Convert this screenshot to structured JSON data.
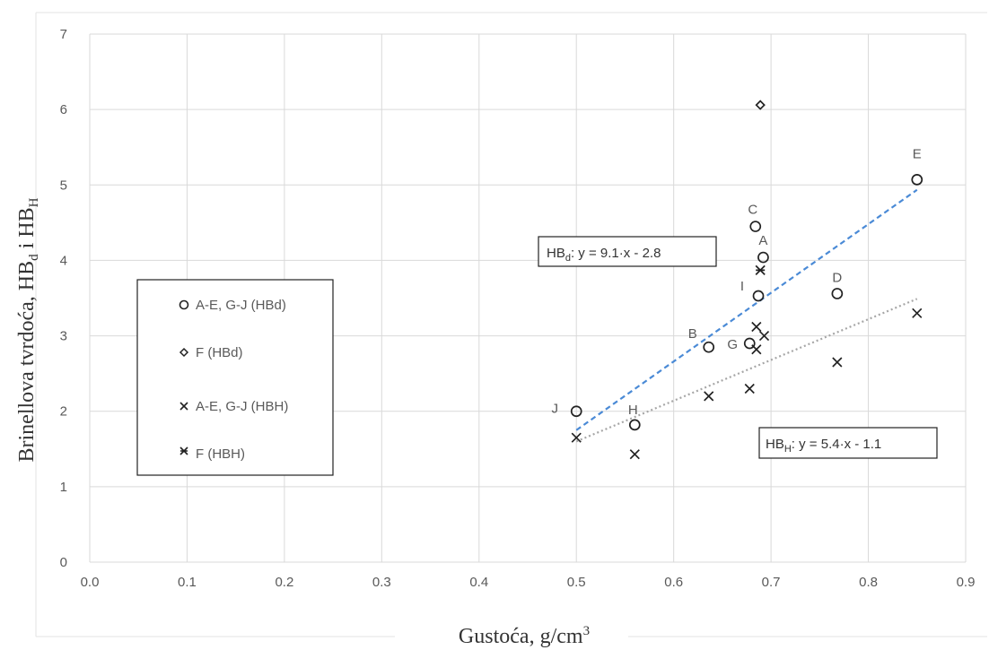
{
  "chart_data": {
    "type": "scatter",
    "xlabel": "Gustoća, g/cm³",
    "ylabel": "Brinellova tvrdoća, HBd i HBH",
    "xlim": [
      0,
      0.9
    ],
    "ylim": [
      0,
      7
    ],
    "x_ticks": [
      "0.0",
      "0.1",
      "0.2",
      "0.3",
      "0.4",
      "0.5",
      "0.6",
      "0.7",
      "0.8",
      "0.9"
    ],
    "y_ticks": [
      "0",
      "1",
      "2",
      "3",
      "4",
      "5",
      "6",
      "7"
    ],
    "grid": true,
    "legend_position": "left",
    "series": [
      {
        "name": "A-E, G-J (HBd)",
        "marker": "circle",
        "points": [
          {
            "label": "J",
            "x": 0.5,
            "y": 2.0
          },
          {
            "label": "H",
            "x": 0.56,
            "y": 1.82
          },
          {
            "label": "B",
            "x": 0.636,
            "y": 2.85
          },
          {
            "label": "G",
            "x": 0.678,
            "y": 2.9
          },
          {
            "label": "I",
            "x": 0.687,
            "y": 3.53
          },
          {
            "label": "C",
            "x": 0.684,
            "y": 4.45
          },
          {
            "label": "A",
            "x": 0.692,
            "y": 4.04
          },
          {
            "label": "D",
            "x": 0.768,
            "y": 3.56
          },
          {
            "label": "E",
            "x": 0.85,
            "y": 5.07
          }
        ]
      },
      {
        "name": "F (HBd)",
        "marker": "diamond",
        "points": [
          {
            "label": "",
            "x": 0.689,
            "y": 6.06
          }
        ]
      },
      {
        "name": "A-E, G-J (HBH)",
        "marker": "x",
        "points": [
          {
            "label": "",
            "x": 0.5,
            "y": 1.65
          },
          {
            "label": "",
            "x": 0.56,
            "y": 1.43
          },
          {
            "label": "",
            "x": 0.636,
            "y": 2.2
          },
          {
            "label": "",
            "x": 0.678,
            "y": 2.3
          },
          {
            "label": "",
            "x": 0.685,
            "y": 2.82
          },
          {
            "label": "",
            "x": 0.685,
            "y": 3.12
          },
          {
            "label": "",
            "x": 0.693,
            "y": 3.0
          },
          {
            "label": "",
            "x": 0.768,
            "y": 2.65
          },
          {
            "label": "",
            "x": 0.85,
            "y": 3.3
          }
        ]
      },
      {
        "name": "F (HBH)",
        "marker": "asterisk",
        "points": [
          {
            "label": "",
            "x": 0.689,
            "y": 3.87
          }
        ]
      }
    ],
    "trendlines": [
      {
        "name": "HBd",
        "equation_prefix": "HB",
        "equation_sub": "d",
        "equation_rest": ": y = 9.1·x - 2.8",
        "slope": 9.1,
        "intercept": -2.8,
        "x_range": [
          0.5,
          0.85
        ],
        "color": "#4a8ad6",
        "style": "dashed"
      },
      {
        "name": "HBH",
        "equation_prefix": "HB",
        "equation_sub": "H",
        "equation_rest": ": y = 5.4·x - 1.1",
        "slope": 5.4,
        "intercept": -1.1,
        "x_range": [
          0.5,
          0.85
        ],
        "color": "#a6a6a6",
        "style": "dotted"
      }
    ]
  }
}
